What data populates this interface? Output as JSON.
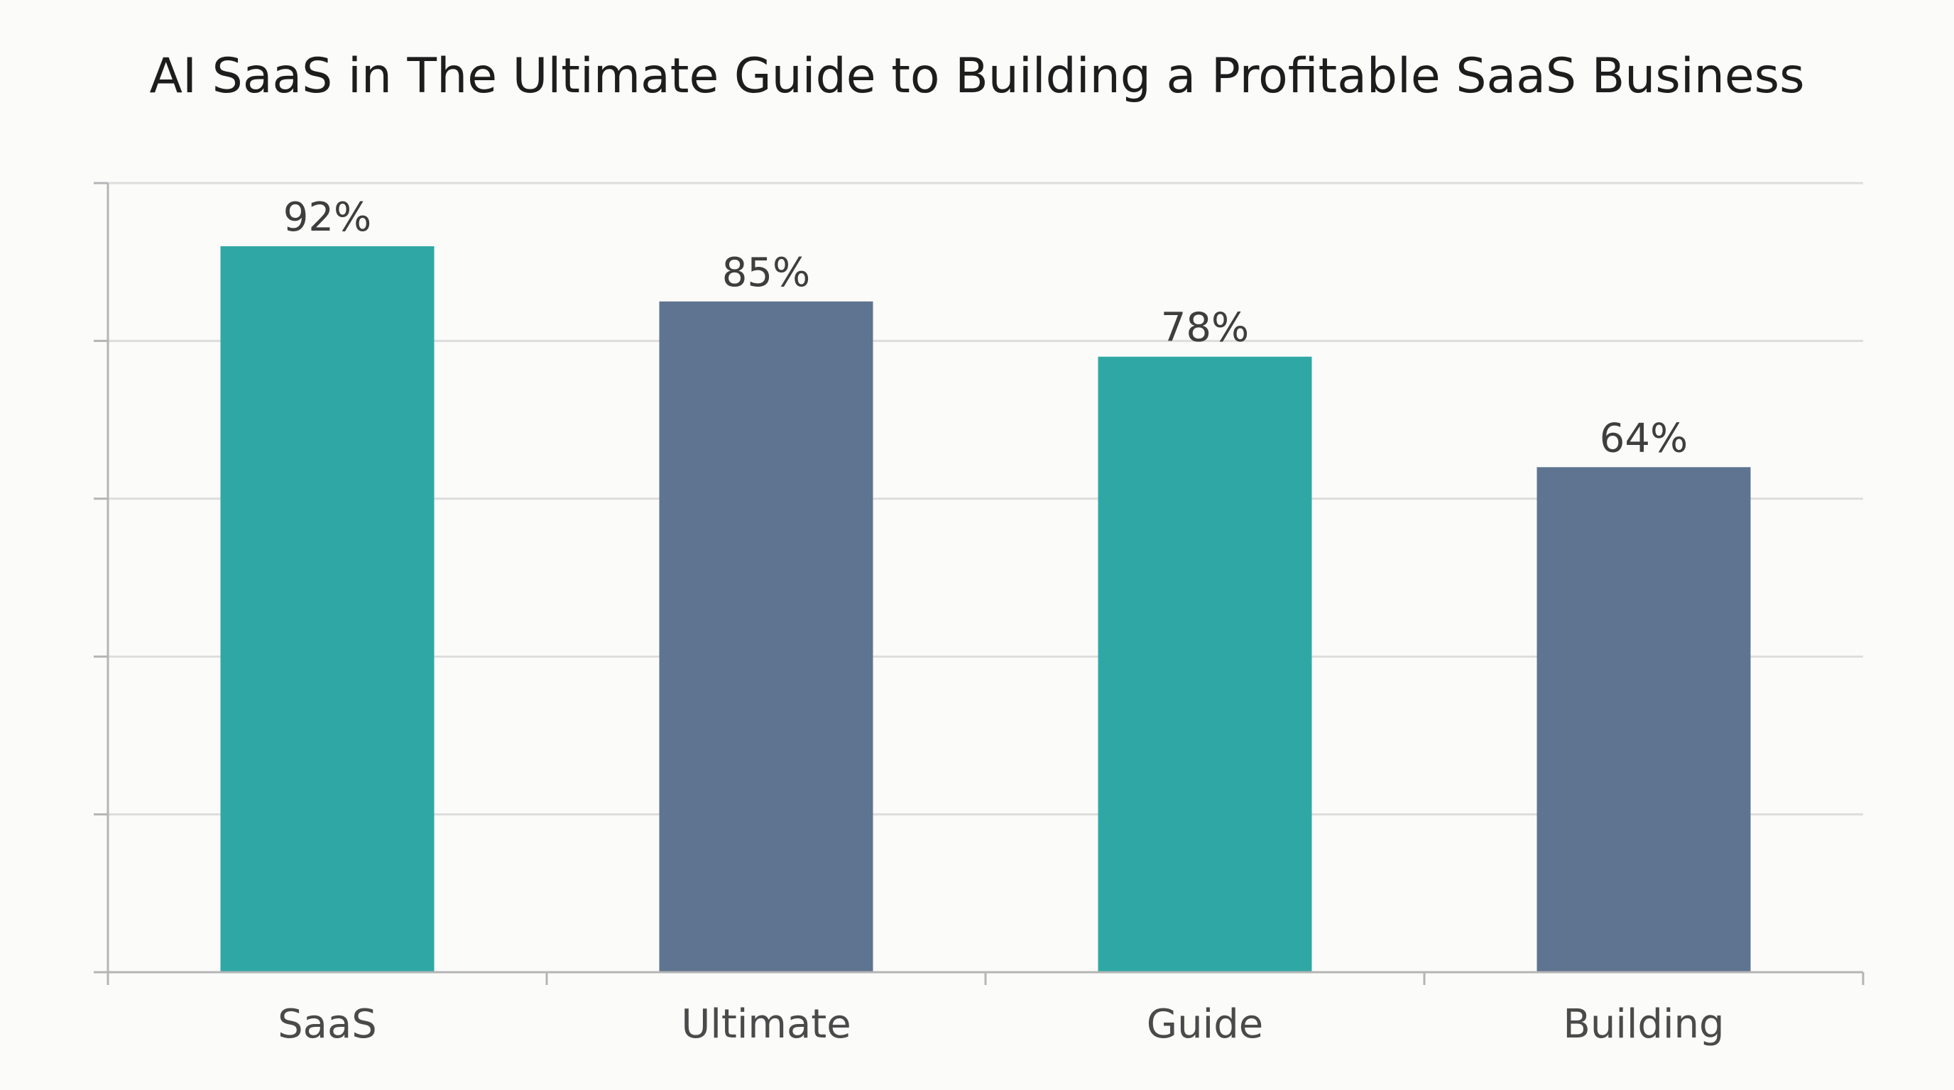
{
  "chart_data": {
    "type": "bar",
    "title": "AI SaaS in The Ultimate Guide to Building a Profitable SaaS Business",
    "categories": [
      "SaaS",
      "Ultimate",
      "Guide",
      "Building"
    ],
    "values": [
      92,
      85,
      78,
      64
    ],
    "data_labels": [
      "92%",
      "85%",
      "78%",
      "64%"
    ],
    "bar_colors": [
      "#2fa8a5",
      "#5e7490",
      "#2fa8a5",
      "#5e7490"
    ],
    "xlabel": "",
    "ylabel": "",
    "ylim": [
      0,
      100
    ],
    "y_ticks": [
      0,
      20,
      40,
      60,
      80,
      100
    ],
    "grid": true,
    "legend": "none"
  },
  "colors": {
    "background": "#fbfbfa",
    "gridline": "#dddddd",
    "axis": "#b5b5b5",
    "title_text": "#1d1d1d",
    "tick_text": "#4a4a4a"
  }
}
